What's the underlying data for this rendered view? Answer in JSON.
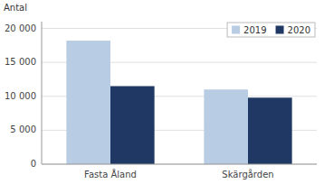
{
  "chart_data": {
    "type": "bar",
    "ylabel": "Antal",
    "categories": [
      "Fasta Åland",
      "Skärgården"
    ],
    "series": [
      {
        "name": "2019",
        "color": "#b8cce4",
        "values": [
          18200,
          11000
        ]
      },
      {
        "name": "2020",
        "color": "#1f3864",
        "values": [
          11500,
          9800
        ]
      }
    ],
    "ylim": [
      0,
      21000
    ],
    "yticks": [
      0,
      {
        "value": 5000,
        "label": "5 000"
      },
      {
        "value": 10000,
        "label": "10 000"
      },
      {
        "value": 15000,
        "label": "15 000"
      },
      {
        "value": 20000,
        "label": "20 000"
      }
    ],
    "grid": true,
    "legend": "upper right"
  }
}
